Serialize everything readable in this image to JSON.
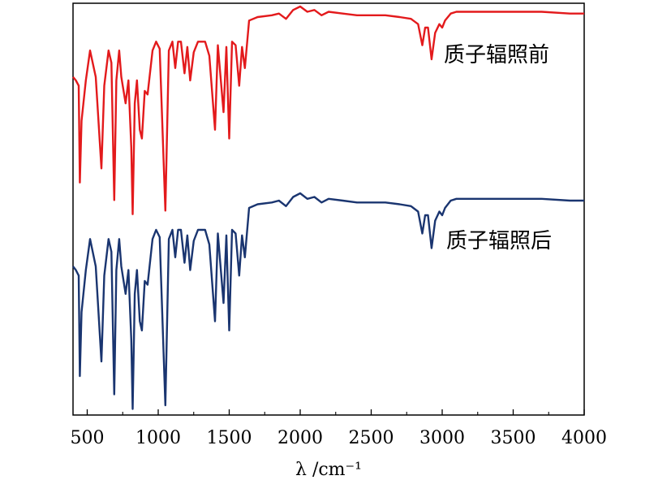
{
  "chart_data": {
    "type": "line",
    "xlabel": "λ /cm⁻¹",
    "xlim": [
      400,
      4000
    ],
    "xticks": [
      500,
      1000,
      1500,
      2000,
      2500,
      3000,
      3500,
      4000
    ],
    "yticks_shown": false,
    "grid": false,
    "series": [
      {
        "name": "质子辐照前",
        "color": "#e31a1c",
        "points": [
          [
            400,
            0.8
          ],
          [
            420,
            0.78
          ],
          [
            440,
            0.75
          ],
          [
            448,
            0.2
          ],
          [
            460,
            0.55
          ],
          [
            490,
            0.78
          ],
          [
            520,
            0.95
          ],
          [
            560,
            0.8
          ],
          [
            600,
            0.28
          ],
          [
            620,
            0.75
          ],
          [
            650,
            0.95
          ],
          [
            670,
            0.88
          ],
          [
            690,
            0.1
          ],
          [
            705,
            0.78
          ],
          [
            725,
            0.95
          ],
          [
            740,
            0.8
          ],
          [
            770,
            0.65
          ],
          [
            790,
            0.78
          ],
          [
            810,
            0.4
          ],
          [
            820,
            0.02
          ],
          [
            835,
            0.65
          ],
          [
            850,
            0.78
          ],
          [
            870,
            0.5
          ],
          [
            885,
            0.45
          ],
          [
            905,
            0.72
          ],
          [
            925,
            0.7
          ],
          [
            960,
            0.95
          ],
          [
            985,
            1.0
          ],
          [
            1010,
            0.96
          ],
          [
            1050,
            0.04
          ],
          [
            1075,
            0.95
          ],
          [
            1100,
            1.0
          ],
          [
            1120,
            0.85
          ],
          [
            1140,
            1.0
          ],
          [
            1160,
            1.0
          ],
          [
            1185,
            0.82
          ],
          [
            1205,
            0.97
          ],
          [
            1225,
            0.78
          ],
          [
            1250,
            0.94
          ],
          [
            1280,
            1.0
          ],
          [
            1330,
            1.0
          ],
          [
            1360,
            0.92
          ],
          [
            1400,
            0.5
          ],
          [
            1420,
            0.98
          ],
          [
            1460,
            0.6
          ],
          [
            1480,
            0.97
          ],
          [
            1500,
            0.45
          ],
          [
            1520,
            1.0
          ],
          [
            1545,
            0.98
          ],
          [
            1570,
            0.75
          ],
          [
            1590,
            0.97
          ],
          [
            1610,
            0.85
          ],
          [
            1640,
            1.12
          ],
          [
            1700,
            1.14
          ],
          [
            1800,
            1.15
          ],
          [
            1850,
            1.16
          ],
          [
            1900,
            1.13
          ],
          [
            1950,
            1.18
          ],
          [
            2000,
            1.2
          ],
          [
            2050,
            1.17
          ],
          [
            2100,
            1.18
          ],
          [
            2150,
            1.15
          ],
          [
            2200,
            1.17
          ],
          [
            2300,
            1.16
          ],
          [
            2400,
            1.15
          ],
          [
            2500,
            1.15
          ],
          [
            2600,
            1.15
          ],
          [
            2700,
            1.14
          ],
          [
            2780,
            1.13
          ],
          [
            2830,
            1.1
          ],
          [
            2860,
            0.98
          ],
          [
            2880,
            1.08
          ],
          [
            2900,
            1.08
          ],
          [
            2925,
            0.9
          ],
          [
            2950,
            1.05
          ],
          [
            2980,
            1.1
          ],
          [
            3000,
            1.08
          ],
          [
            3020,
            1.12
          ],
          [
            3060,
            1.16
          ],
          [
            3100,
            1.17
          ],
          [
            3300,
            1.17
          ],
          [
            3500,
            1.17
          ],
          [
            3700,
            1.17
          ],
          [
            3900,
            1.16
          ],
          [
            4000,
            1.16
          ]
        ]
      },
      {
        "name": "质子辐照后",
        "color": "#1a3570",
        "points": [
          [
            400,
            0.8
          ],
          [
            420,
            0.78
          ],
          [
            440,
            0.75
          ],
          [
            448,
            0.2
          ],
          [
            460,
            0.55
          ],
          [
            490,
            0.78
          ],
          [
            520,
            0.95
          ],
          [
            560,
            0.8
          ],
          [
            600,
            0.28
          ],
          [
            620,
            0.75
          ],
          [
            650,
            0.95
          ],
          [
            670,
            0.88
          ],
          [
            690,
            0.1
          ],
          [
            705,
            0.78
          ],
          [
            725,
            0.95
          ],
          [
            740,
            0.8
          ],
          [
            770,
            0.65
          ],
          [
            790,
            0.78
          ],
          [
            810,
            0.4
          ],
          [
            820,
            0.02
          ],
          [
            835,
            0.65
          ],
          [
            850,
            0.78
          ],
          [
            870,
            0.5
          ],
          [
            885,
            0.45
          ],
          [
            905,
            0.72
          ],
          [
            925,
            0.7
          ],
          [
            960,
            0.95
          ],
          [
            985,
            1.0
          ],
          [
            1010,
            0.96
          ],
          [
            1050,
            0.04
          ],
          [
            1075,
            0.95
          ],
          [
            1100,
            1.0
          ],
          [
            1120,
            0.85
          ],
          [
            1140,
            1.0
          ],
          [
            1160,
            1.0
          ],
          [
            1185,
            0.82
          ],
          [
            1205,
            0.97
          ],
          [
            1225,
            0.78
          ],
          [
            1250,
            0.94
          ],
          [
            1280,
            1.0
          ],
          [
            1330,
            1.0
          ],
          [
            1360,
            0.92
          ],
          [
            1400,
            0.5
          ],
          [
            1420,
            0.98
          ],
          [
            1460,
            0.6
          ],
          [
            1480,
            0.97
          ],
          [
            1500,
            0.45
          ],
          [
            1520,
            1.0
          ],
          [
            1545,
            0.98
          ],
          [
            1570,
            0.75
          ],
          [
            1590,
            0.97
          ],
          [
            1610,
            0.85
          ],
          [
            1640,
            1.12
          ],
          [
            1700,
            1.14
          ],
          [
            1800,
            1.15
          ],
          [
            1850,
            1.16
          ],
          [
            1900,
            1.13
          ],
          [
            1950,
            1.18
          ],
          [
            2000,
            1.2
          ],
          [
            2050,
            1.17
          ],
          [
            2100,
            1.18
          ],
          [
            2150,
            1.15
          ],
          [
            2200,
            1.17
          ],
          [
            2300,
            1.16
          ],
          [
            2400,
            1.15
          ],
          [
            2500,
            1.15
          ],
          [
            2600,
            1.15
          ],
          [
            2700,
            1.14
          ],
          [
            2780,
            1.13
          ],
          [
            2830,
            1.1
          ],
          [
            2860,
            0.98
          ],
          [
            2880,
            1.08
          ],
          [
            2900,
            1.08
          ],
          [
            2925,
            0.9
          ],
          [
            2950,
            1.05
          ],
          [
            2980,
            1.1
          ],
          [
            3000,
            1.08
          ],
          [
            3020,
            1.12
          ],
          [
            3060,
            1.16
          ],
          [
            3100,
            1.17
          ],
          [
            3300,
            1.17
          ],
          [
            3500,
            1.17
          ],
          [
            3700,
            1.17
          ],
          [
            3900,
            1.16
          ],
          [
            4000,
            1.16
          ]
        ]
      }
    ]
  }
}
